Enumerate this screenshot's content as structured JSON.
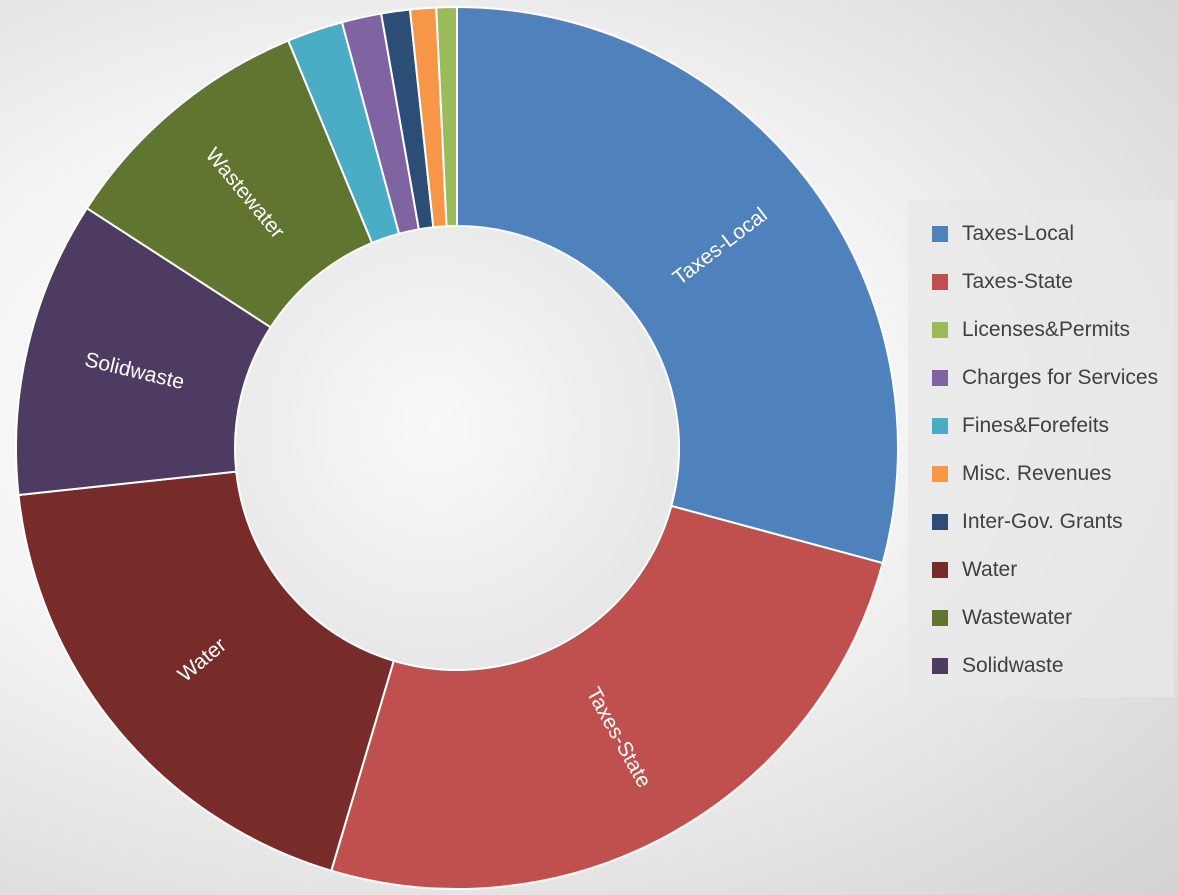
{
  "chart_data": {
    "type": "pie",
    "variant": "donut",
    "title": "",
    "legend_position": "right",
    "slices": [
      {
        "label": "Taxes-Local",
        "value": 29.2,
        "color": "#4f81bd",
        "show_label": true
      },
      {
        "label": "Taxes-State",
        "value": 25.4,
        "color": "#c0504d",
        "show_label": true
      },
      {
        "label": "Licenses&Permits",
        "value": 0.75,
        "color": "#9bbb59",
        "show_label": false
      },
      {
        "label": "Charges for Services",
        "value": 1.45,
        "color": "#8064a2",
        "show_label": false
      },
      {
        "label": "Fines&Forefeits",
        "value": 2.05,
        "color": "#4bacc6",
        "show_label": false
      },
      {
        "label": "Misc. Revenues",
        "value": 0.95,
        "color": "#f79646",
        "show_label": false
      },
      {
        "label": "Inter-Gov. Grants",
        "value": 1.05,
        "color": "#2c4d75",
        "show_label": false
      },
      {
        "label": "Water",
        "value": 18.7,
        "color": "#772c2a",
        "show_label": true
      },
      {
        "label": "Wastewater",
        "value": 9.6,
        "color": "#5f7530",
        "show_label": true
      },
      {
        "label": "Solidwaste",
        "value": 10.85,
        "color": "#4d3b62",
        "show_label": true
      }
    ],
    "slice_order": [
      "Taxes-Local",
      "Taxes-State",
      "Water",
      "Solidwaste",
      "Wastewater",
      "Fines&Forefeits",
      "Charges for Services",
      "Inter-Gov. Grants",
      "Misc. Revenues",
      "Licenses&Permits"
    ]
  }
}
